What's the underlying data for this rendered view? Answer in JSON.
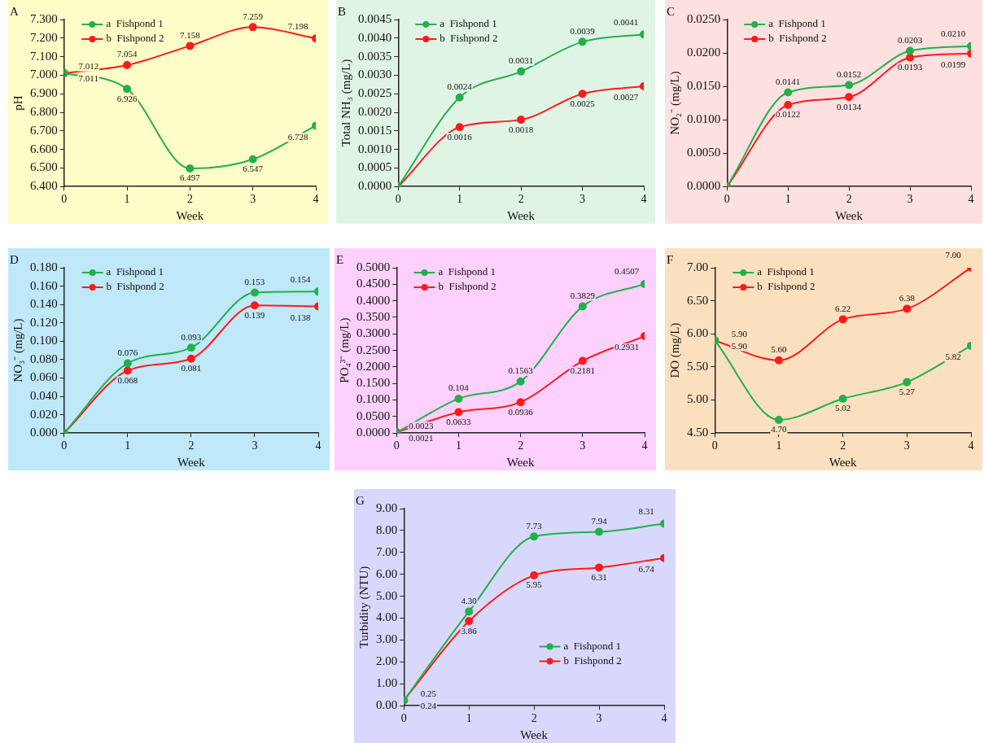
{
  "chart_data": [
    {
      "type": "line",
      "title": "A",
      "xlabel": "Week",
      "ylabel": "pH",
      "x": [
        0,
        1,
        2,
        3,
        4
      ],
      "xlim": [
        0,
        4
      ],
      "xticks": [
        0,
        1,
        2,
        3,
        4
      ],
      "ylim": [
        6.4,
        7.3
      ],
      "yticks": [
        {
          "value": 6.4,
          "label": "6.400"
        },
        {
          "value": 6.5,
          "label": "6.500"
        },
        {
          "value": 6.6,
          "label": "6.600"
        },
        {
          "value": 6.7,
          "label": "6.700"
        },
        {
          "value": 6.8,
          "label": "6.800"
        },
        {
          "value": 6.9,
          "label": "6.900"
        },
        {
          "value": 7.0,
          "label": "7.000"
        },
        {
          "value": 7.1,
          "label": "7.100"
        },
        {
          "value": 7.2,
          "label": "7.200"
        },
        {
          "value": 7.3,
          "label": "7.300"
        }
      ],
      "marker": "circle",
      "grid": false,
      "legend": "top left",
      "series": [
        {
          "name": "a  Fishpond 1",
          "color": "#22b04a",
          "values": [
            7.012,
            6.926,
            6.497,
            6.547,
            6.728
          ],
          "value_labels": [
            "7.012",
            "6.926",
            "6.497",
            "6.547",
            "6.728"
          ]
        },
        {
          "name": "b  Fishpond 2",
          "color": "#ff1a1a",
          "values": [
            7.011,
            7.054,
            7.158,
            7.259,
            7.198
          ],
          "value_labels": [
            "7.011",
            "7.054",
            "7.158",
            "7.259",
            "7.198"
          ]
        }
      ]
    },
    {
      "type": "line",
      "title": "B",
      "xlabel": "Week",
      "ylabel": "Total NH₃ (mg/L)",
      "x": [
        0,
        1,
        2,
        3,
        4
      ],
      "xlim": [
        0,
        4
      ],
      "xticks": [
        0,
        1,
        2,
        3,
        4
      ],
      "ylim": [
        0,
        0.0045
      ],
      "yticks": [
        {
          "value": 0,
          "label": "0.0000"
        },
        {
          "value": 0.0005,
          "label": "0.0005"
        },
        {
          "value": 0.001,
          "label": "0.0010"
        },
        {
          "value": 0.0015,
          "label": "0.0015"
        },
        {
          "value": 0.002,
          "label": "0.0020"
        },
        {
          "value": 0.0025,
          "label": "0.0025"
        },
        {
          "value": 0.003,
          "label": "0.0030"
        },
        {
          "value": 0.0035,
          "label": "0.0035"
        },
        {
          "value": 0.004,
          "label": "0.0040"
        },
        {
          "value": 0.0045,
          "label": "0.0045"
        }
      ],
      "marker": "circle",
      "grid": false,
      "legend": "top left",
      "series": [
        {
          "name": "a  Fishpond 1",
          "color": "#22b04a",
          "values": [
            0,
            0.0024,
            0.0031,
            0.0039,
            0.0041
          ],
          "value_labels": [
            null,
            "0.0024",
            "0.0031",
            "0.0039",
            "0.0041"
          ]
        },
        {
          "name": "b  Fishpond 2",
          "color": "#ff1a1a",
          "values": [
            0,
            0.0016,
            0.0018,
            0.0025,
            0.0027
          ],
          "value_labels": [
            null,
            "0.0016",
            "0.0018",
            "0.0025",
            "0.0027"
          ]
        }
      ]
    },
    {
      "type": "line",
      "title": "C",
      "xlabel": "Week",
      "ylabel": "NO₂⁻ (mg/L)",
      "x": [
        0,
        1,
        2,
        3,
        4
      ],
      "xlim": [
        0,
        4
      ],
      "xticks": [
        0,
        1,
        2,
        3,
        4
      ],
      "ylim": [
        0,
        0.025
      ],
      "yticks": [
        {
          "value": 0,
          "label": "0.0000"
        },
        {
          "value": 0.005,
          "label": "0.0050"
        },
        {
          "value": 0.01,
          "label": "0.0100"
        },
        {
          "value": 0.015,
          "label": "0.0150"
        },
        {
          "value": 0.02,
          "label": "0.0200"
        },
        {
          "value": 0.025,
          "label": "0.0250"
        }
      ],
      "marker": "circle",
      "grid": false,
      "legend": "top left",
      "series": [
        {
          "name": "a  Fishpond 1",
          "color": "#22b04a",
          "values": [
            0,
            0.0141,
            0.0152,
            0.0203,
            0.021
          ],
          "value_labels": [
            null,
            "0.0141",
            "0.0152",
            "0.0203",
            "0.0210"
          ]
        },
        {
          "name": "b  Fishpond 2",
          "color": "#ff1a1a",
          "values": [
            0,
            0.0122,
            0.0134,
            0.0193,
            0.0199
          ],
          "value_labels": [
            null,
            "0.0122",
            "0.0134",
            "0.0193",
            "0.0199"
          ]
        }
      ]
    },
    {
      "type": "line",
      "title": "D",
      "xlabel": "Week",
      "ylabel": "NO₃⁻ (mg/L)",
      "x": [
        0,
        1,
        2,
        3,
        4
      ],
      "xlim": [
        0,
        4
      ],
      "xticks": [
        0,
        1,
        2,
        3,
        4
      ],
      "ylim": [
        0,
        0.18
      ],
      "yticks": [
        {
          "value": 0,
          "label": "0.000"
        },
        {
          "value": 0.02,
          "label": "0.020"
        },
        {
          "value": 0.04,
          "label": "0.040"
        },
        {
          "value": 0.06,
          "label": "0.060"
        },
        {
          "value": 0.08,
          "label": "0.080"
        },
        {
          "value": 0.1,
          "label": "0.100"
        },
        {
          "value": 0.12,
          "label": "0.120"
        },
        {
          "value": 0.14,
          "label": "0.140"
        },
        {
          "value": 0.16,
          "label": "0.160"
        },
        {
          "value": 0.18,
          "label": "0.180"
        }
      ],
      "marker": "circle",
      "grid": false,
      "legend": "top left",
      "series": [
        {
          "name": "a  Fishpond 1",
          "color": "#22b04a",
          "values": [
            0,
            0.076,
            0.093,
            0.153,
            0.154
          ],
          "value_labels": [
            null,
            "0.076",
            "0.093",
            "0.153",
            "0.154"
          ]
        },
        {
          "name": "b  Fishpond 2",
          "color": "#ff1a1a",
          "values": [
            0,
            0.068,
            0.081,
            0.139,
            0.138
          ],
          "value_labels": [
            null,
            "0.068",
            "0.081",
            "0.139",
            "0.138"
          ]
        }
      ]
    },
    {
      "type": "line",
      "title": "E",
      "xlabel": "Week",
      "ylabel": "PO₄³⁻ (mg/L)",
      "x": [
        0,
        1,
        2,
        3,
        4
      ],
      "xlim": [
        0,
        4
      ],
      "xticks": [
        0,
        1,
        2,
        3,
        4
      ],
      "ylim": [
        0,
        0.5
      ],
      "yticks": [
        {
          "value": 0,
          "label": "0.0000"
        },
        {
          "value": 0.05,
          "label": "0.0500"
        },
        {
          "value": 0.1,
          "label": "0.1000"
        },
        {
          "value": 0.15,
          "label": "0.1500"
        },
        {
          "value": 0.2,
          "label": "0.2000"
        },
        {
          "value": 0.25,
          "label": "0.2500"
        },
        {
          "value": 0.3,
          "label": "0.3000"
        },
        {
          "value": 0.35,
          "label": "0.3500"
        },
        {
          "value": 0.4,
          "label": "0.4000"
        },
        {
          "value": 0.45,
          "label": "0.4500"
        },
        {
          "value": 0.5,
          "label": "0.5000"
        }
      ],
      "marker": "circle",
      "grid": false,
      "legend": "top left",
      "series": [
        {
          "name": "a  Fishpond 1",
          "color": "#22b04a",
          "values": [
            0.0021,
            0.104,
            0.1563,
            0.3829,
            0.4507
          ],
          "value_labels": [
            "0.0021",
            "0.104",
            "0.1563",
            "0.3829",
            "0.4507"
          ]
        },
        {
          "name": "b  Fishpond 2",
          "color": "#ff1a1a",
          "values": [
            0.0023,
            0.0633,
            0.0936,
            0.2181,
            0.2931
          ],
          "value_labels": [
            "0.0023",
            "0.0633",
            "0.0936",
            "0.2181",
            "0.2931"
          ]
        }
      ]
    },
    {
      "type": "line",
      "title": "F",
      "xlabel": "Week",
      "ylabel": "DO (mg/L)",
      "x": [
        0,
        1,
        2,
        3,
        4
      ],
      "xlim": [
        0,
        4
      ],
      "xticks": [
        0,
        1,
        2,
        3,
        4
      ],
      "ylim": [
        4.5,
        7.0
      ],
      "yticks": [
        {
          "value": 4.5,
          "label": "4.50"
        },
        {
          "value": 5.0,
          "label": "5.00"
        },
        {
          "value": 5.5,
          "label": "5.50"
        },
        {
          "value": 6.0,
          "label": "6.00"
        },
        {
          "value": 6.5,
          "label": "6.50"
        },
        {
          "value": 7.0,
          "label": "7.00"
        }
      ],
      "marker": "circle",
      "grid": false,
      "legend": "top left",
      "series": [
        {
          "name": "a  Fishpond 1",
          "color": "#22b04a",
          "values": [
            5.9,
            4.7,
            5.02,
            5.27,
            5.82
          ],
          "value_labels": [
            "5.90",
            "4.70",
            "5.02",
            "5.27",
            "5.82"
          ]
        },
        {
          "name": "b  Fishpond 2",
          "color": "#ff1a1a",
          "values": [
            5.9,
            5.6,
            6.22,
            6.38,
            7.0
          ],
          "value_labels": [
            "5.90",
            "5.60",
            "6.22",
            "6.38",
            "7.00"
          ]
        }
      ]
    },
    {
      "type": "line",
      "title": "G",
      "xlabel": "Week",
      "ylabel": "Turbidity (NTU)",
      "x": [
        0,
        1,
        2,
        3,
        4
      ],
      "xlim": [
        0,
        4
      ],
      "xticks": [
        0,
        1,
        2,
        3,
        4
      ],
      "ylim": [
        0,
        9
      ],
      "yticks": [
        {
          "value": 0,
          "label": "0.00"
        },
        {
          "value": 1,
          "label": "1.00"
        },
        {
          "value": 2,
          "label": "2.00"
        },
        {
          "value": 3,
          "label": "3.00"
        },
        {
          "value": 4,
          "label": "4.00"
        },
        {
          "value": 5,
          "label": "5.00"
        },
        {
          "value": 6,
          "label": "6.00"
        },
        {
          "value": 7,
          "label": "7.00"
        },
        {
          "value": 8,
          "label": "8.00"
        },
        {
          "value": 9,
          "label": "9.00"
        }
      ],
      "marker": "circle",
      "grid": false,
      "legend": "bottom right",
      "series": [
        {
          "name": "a  Fishpond 1",
          "color": "#22b04a",
          "values": [
            0.24,
            4.3,
            7.73,
            7.94,
            8.31
          ],
          "value_labels": [
            "0.24",
            "4.30",
            "7.73",
            "7.94",
            "8.31"
          ]
        },
        {
          "name": "b  Fishpond 2",
          "color": "#ff1a1a",
          "values": [
            0.25,
            3.86,
            5.95,
            6.31,
            6.74
          ],
          "value_labels": [
            "0.25",
            "3.86",
            "5.95",
            "6.31",
            "6.74"
          ]
        }
      ]
    }
  ]
}
